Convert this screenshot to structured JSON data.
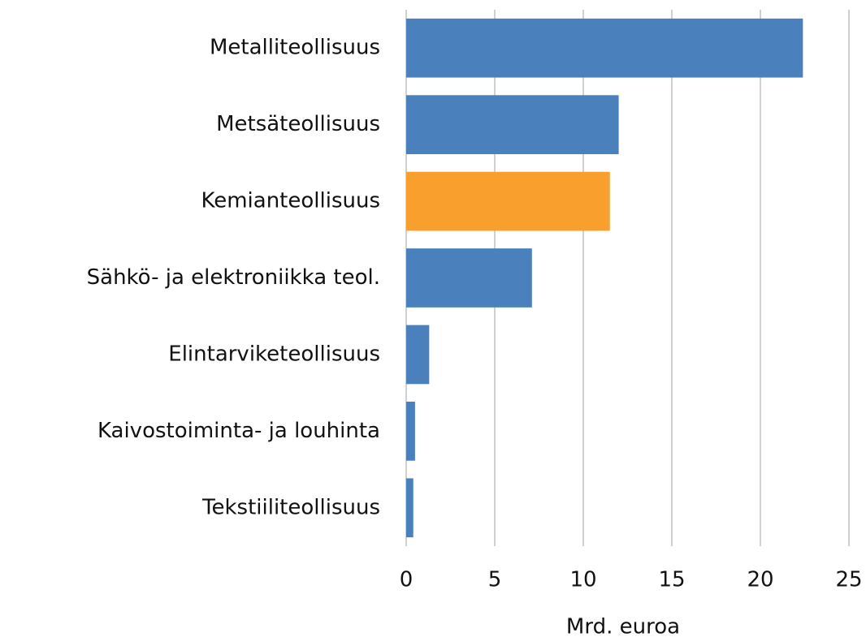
{
  "chart_data": {
    "type": "barh",
    "categories": [
      "Metalliteollisuus",
      "Metsäteollisuus",
      "Kemianteollisuus",
      "Sähkö- ja elektroniikka teol.",
      "Elintarviketeollisuus",
      "Kaivostoiminta- ja louhinta",
      "Tekstiiliteollisuus"
    ],
    "values": [
      22.4,
      12.0,
      11.5,
      7.1,
      1.3,
      0.5,
      0.4
    ],
    "colors": [
      "#4a81bd",
      "#4a81bd",
      "#f89f2e",
      "#4a81bd",
      "#4a81bd",
      "#4a81bd",
      "#4a81bd"
    ],
    "xlabel": "Mrd. euroa",
    "xlim": [
      0,
      25
    ],
    "xticks": [
      0,
      5,
      10,
      15,
      20,
      25
    ],
    "grid": true
  }
}
